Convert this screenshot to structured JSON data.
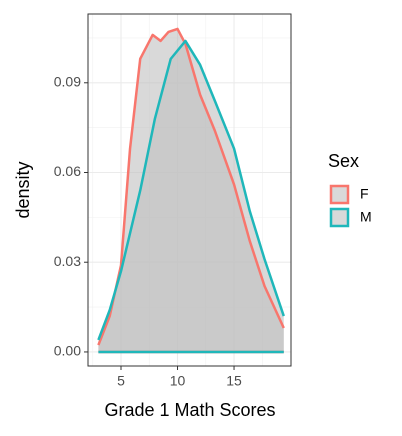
{
  "chart_data": {
    "type": "density",
    "xlabel": "Grade 1 Math Scores",
    "ylabel": "density",
    "legend_title": "Sex",
    "xlim": [
      2.08,
      20.04
    ],
    "ylim": [
      -0.0047,
      0.113
    ],
    "xticks": [
      5,
      10,
      15
    ],
    "yticks": [
      {
        "value": 0,
        "label": "0.00"
      },
      {
        "value": 0.03,
        "label": "0.03"
      },
      {
        "value": 0.06,
        "label": "0.06"
      },
      {
        "value": 0.09,
        "label": "0.09"
      }
    ],
    "minor_xticks": [
      2.5,
      7.5,
      12.5,
      17.5
    ],
    "minor_yticks": [
      0.015,
      0.045,
      0.075,
      0.105
    ],
    "grid": true,
    "legend": "right",
    "fill": "#bfbfbf",
    "series": [
      {
        "name": "F",
        "color": "#f8766d",
        "x": [
          3.0,
          4.0,
          5.0,
          5.8,
          6.7,
          7.8,
          8.5,
          9.2,
          10.0,
          10.7,
          12.0,
          13.3,
          15.0,
          16.4,
          17.7,
          19.4
        ],
        "values": [
          0.0023,
          0.012,
          0.029,
          0.068,
          0.098,
          0.106,
          0.104,
          0.107,
          0.108,
          0.103,
          0.086,
          0.074,
          0.056,
          0.037,
          0.022,
          0.008
        ]
      },
      {
        "name": "M",
        "color": "#1fb7ba",
        "x": [
          3.0,
          4.0,
          5.0,
          6.7,
          8.0,
          9.4,
          10.7,
          12.0,
          13.3,
          15.0,
          16.4,
          17.7,
          19.4
        ],
        "values": [
          0.004,
          0.014,
          0.027,
          0.054,
          0.078,
          0.098,
          0.104,
          0.096,
          0.084,
          0.068,
          0.047,
          0.031,
          0.012
        ]
      }
    ]
  }
}
